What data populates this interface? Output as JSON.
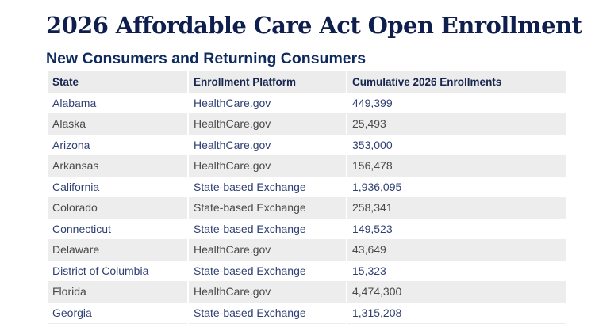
{
  "title": "2026 Affordable Care Act Open Enrollment",
  "subtitle": "New Consumers and Returning Consumers",
  "table": {
    "headers": [
      "State",
      "Enrollment Platform",
      "Cumulative 2026 Enrollments"
    ],
    "rows": [
      [
        "Alabama",
        "HealthCare.gov",
        "449,399"
      ],
      [
        "Alaska",
        "HealthCare.gov",
        "25,493"
      ],
      [
        "Arizona",
        "HealthCare.gov",
        "353,000"
      ],
      [
        "Arkansas",
        "HealthCare.gov",
        "156,478"
      ],
      [
        "California",
        "State-based Exchange",
        "1,936,095"
      ],
      [
        "Colorado",
        "State-based Exchange",
        "258,341"
      ],
      [
        "Connecticut",
        "State-based Exchange",
        "149,523"
      ],
      [
        "Delaware",
        "HealthCare.gov",
        "43,649"
      ],
      [
        "District of Columbia",
        "State-based Exchange",
        "15,323"
      ],
      [
        "Florida",
        "HealthCare.gov",
        "4,474,300"
      ],
      [
        "Georgia",
        "State-based Exchange",
        "1,315,208"
      ]
    ]
  },
  "colors": {
    "title": "#0f1f4d",
    "odd_row_text": "#2e3f73",
    "even_row_text": "#4a4a4a",
    "stripe_bg": "#ededed"
  }
}
